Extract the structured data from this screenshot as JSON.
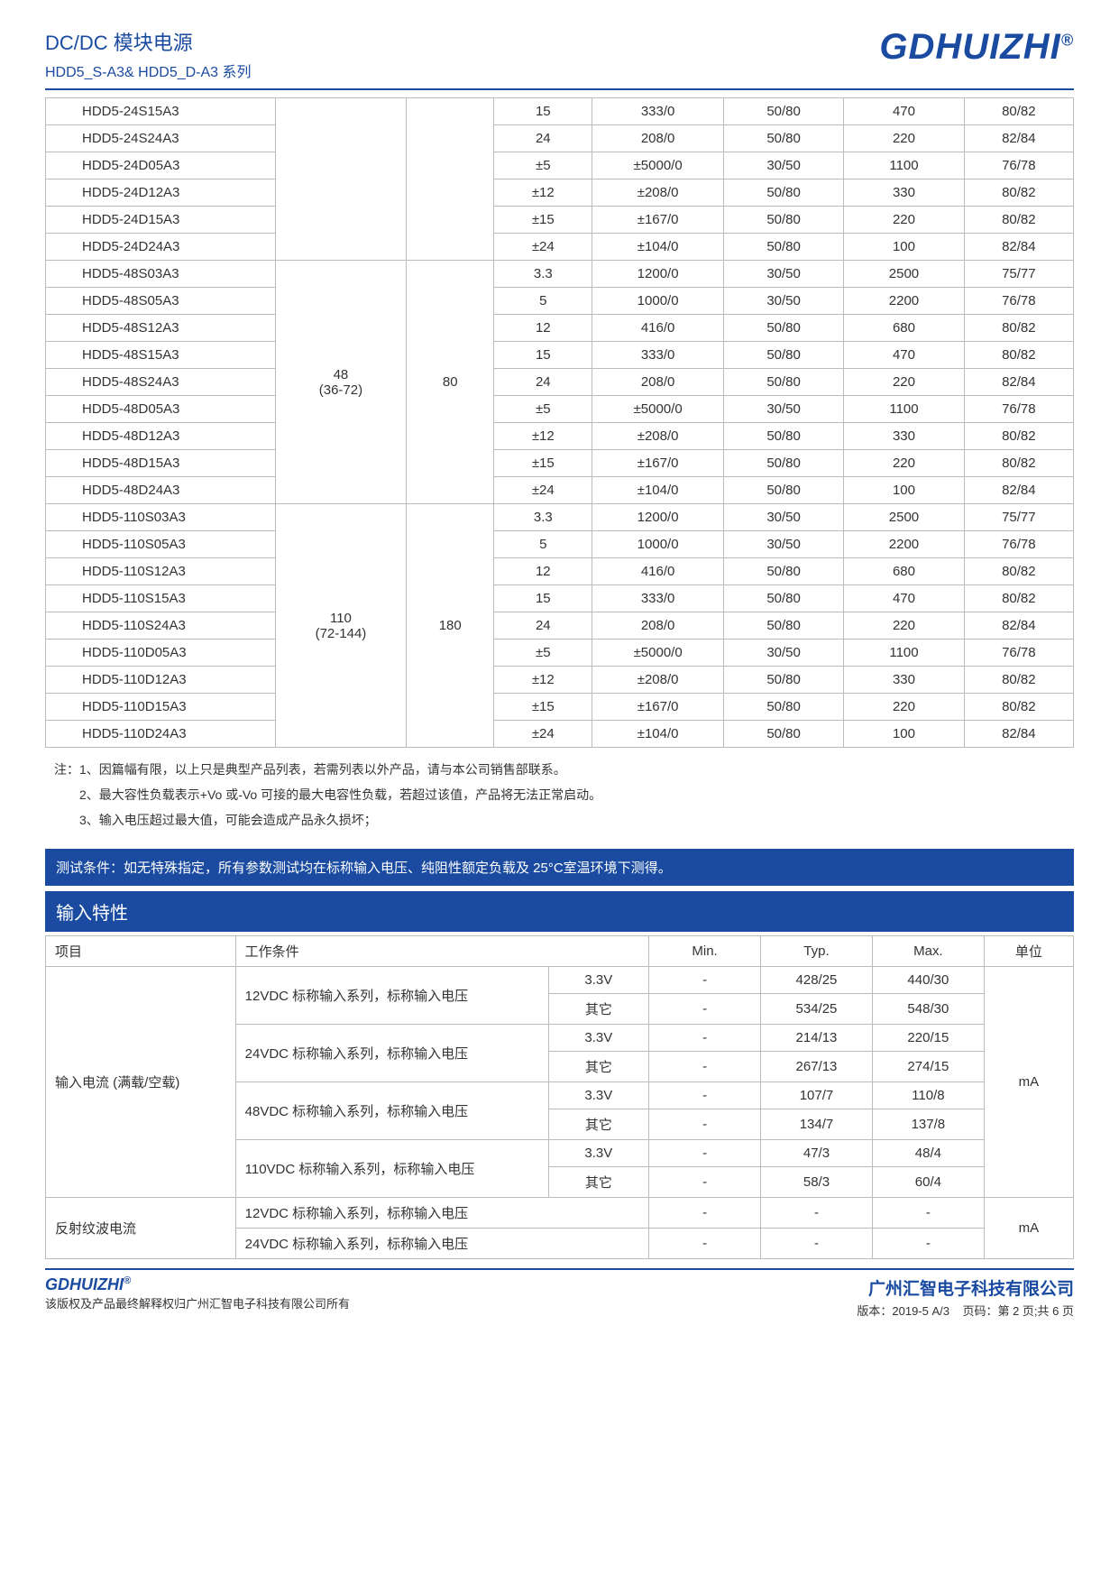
{
  "header": {
    "title": "DC/DC 模块电源",
    "subtitle": "HDD5_S-A3& HDD5_D-A3 系列",
    "brand": "GDHUIZHI",
    "brand_sup": "®"
  },
  "table1": {
    "group0": {
      "span": 6,
      "volt": "",
      "c80": ""
    },
    "rows0": [
      {
        "model": "HDD5-24S15A3",
        "c1": "15",
        "c2": "333/0",
        "c3": "50/80",
        "c4": "470",
        "c5": "80/82"
      },
      {
        "model": "HDD5-24S24A3",
        "c1": "24",
        "c2": "208/0",
        "c3": "50/80",
        "c4": "220",
        "c5": "82/84"
      },
      {
        "model": "HDD5-24D05A3",
        "c1": "±5",
        "c2": "±5000/0",
        "c3": "30/50",
        "c4": "1100",
        "c5": "76/78"
      },
      {
        "model": "HDD5-24D12A3",
        "c1": "±12",
        "c2": "±208/0",
        "c3": "50/80",
        "c4": "330",
        "c5": "80/82"
      },
      {
        "model": "HDD5-24D15A3",
        "c1": "±15",
        "c2": "±167/0",
        "c3": "50/80",
        "c4": "220",
        "c5": "80/82"
      },
      {
        "model": "HDD5-24D24A3",
        "c1": "±24",
        "c2": "±104/0",
        "c3": "50/80",
        "c4": "100",
        "c5": "82/84"
      }
    ],
    "group1": {
      "span": 9,
      "volt_a": "48",
      "volt_b": "(36-72)",
      "c80": "80"
    },
    "rows1": [
      {
        "model": "HDD5-48S03A3",
        "c1": "3.3",
        "c2": "1200/0",
        "c3": "30/50",
        "c4": "2500",
        "c5": "75/77"
      },
      {
        "model": "HDD5-48S05A3",
        "c1": "5",
        "c2": "1000/0",
        "c3": "30/50",
        "c4": "2200",
        "c5": "76/78"
      },
      {
        "model": "HDD5-48S12A3",
        "c1": "12",
        "c2": "416/0",
        "c3": "50/80",
        "c4": "680",
        "c5": "80/82"
      },
      {
        "model": "HDD5-48S15A3",
        "c1": "15",
        "c2": "333/0",
        "c3": "50/80",
        "c4": "470",
        "c5": "80/82"
      },
      {
        "model": "HDD5-48S24A3",
        "c1": "24",
        "c2": "208/0",
        "c3": "50/80",
        "c4": "220",
        "c5": "82/84"
      },
      {
        "model": "HDD5-48D05A3",
        "c1": "±5",
        "c2": "±5000/0",
        "c3": "30/50",
        "c4": "1100",
        "c5": "76/78"
      },
      {
        "model": "HDD5-48D12A3",
        "c1": "±12",
        "c2": "±208/0",
        "c3": "50/80",
        "c4": "330",
        "c5": "80/82"
      },
      {
        "model": "HDD5-48D15A3",
        "c1": "±15",
        "c2": "±167/0",
        "c3": "50/80",
        "c4": "220",
        "c5": "80/82"
      },
      {
        "model": "HDD5-48D24A3",
        "c1": "±24",
        "c2": "±104/0",
        "c3": "50/80",
        "c4": "100",
        "c5": "82/84"
      }
    ],
    "group2": {
      "span": 9,
      "volt_a": "110",
      "volt_b": "(72-144)",
      "c80": "180"
    },
    "rows2": [
      {
        "model": "HDD5-110S03A3",
        "c1": "3.3",
        "c2": "1200/0",
        "c3": "30/50",
        "c4": "2500",
        "c5": "75/77"
      },
      {
        "model": "HDD5-110S05A3",
        "c1": "5",
        "c2": "1000/0",
        "c3": "30/50",
        "c4": "2200",
        "c5": "76/78"
      },
      {
        "model": "HDD5-110S12A3",
        "c1": "12",
        "c2": "416/0",
        "c3": "50/80",
        "c4": "680",
        "c5": "80/82"
      },
      {
        "model": "HDD5-110S15A3",
        "c1": "15",
        "c2": "333/0",
        "c3": "50/80",
        "c4": "470",
        "c5": "80/82"
      },
      {
        "model": "HDD5-110S24A3",
        "c1": "24",
        "c2": "208/0",
        "c3": "50/80",
        "c4": "220",
        "c5": "82/84"
      },
      {
        "model": "HDD5-110D05A3",
        "c1": "±5",
        "c2": "±5000/0",
        "c3": "30/50",
        "c4": "1100",
        "c5": "76/78"
      },
      {
        "model": "HDD5-110D12A3",
        "c1": "±12",
        "c2": "±208/0",
        "c3": "50/80",
        "c4": "330",
        "c5": "80/82"
      },
      {
        "model": "HDD5-110D15A3",
        "c1": "±15",
        "c2": "±167/0",
        "c3": "50/80",
        "c4": "220",
        "c5": "80/82"
      },
      {
        "model": "HDD5-110D24A3",
        "c1": "±24",
        "c2": "±104/0",
        "c3": "50/80",
        "c4": "100",
        "c5": "82/84"
      }
    ]
  },
  "notes": {
    "n1": "注：1、因篇幅有限，以上只是典型产品列表，若需列表以外产品，请与本公司销售部联系。",
    "n2": "2、最大容性负载表示+Vo 或-Vo 可接的最大电容性负载，若超过该值，产品将无法正常启动。",
    "n3": "3、输入电压超过最大值，可能会造成产品永久损坏；"
  },
  "banner": "测试条件：如无特殊指定，所有参数测试均在标称输入电压、纯阻性额定负载及 25°C室温环境下测得。",
  "section_title": "输入特性",
  "spec": {
    "headers": {
      "item": "项目",
      "cond": "工作条件",
      "min": "Min.",
      "typ": "Typ.",
      "max": "Max.",
      "unit": "单位"
    },
    "item1": "输入电流 (满载/空载)",
    "unit_ma": "mA",
    "rows1": [
      {
        "cond": "12VDC 标称输入系列，标称输入电压",
        "sub": "3.3V",
        "min": "-",
        "typ": "428/25",
        "max": "440/30"
      },
      {
        "cond": "",
        "sub": "其它",
        "min": "-",
        "typ": "534/25",
        "max": "548/30"
      },
      {
        "cond": "24VDC 标称输入系列，标称输入电压",
        "sub": "3.3V",
        "min": "-",
        "typ": "214/13",
        "max": "220/15"
      },
      {
        "cond": "",
        "sub": "其它",
        "min": "-",
        "typ": "267/13",
        "max": "274/15"
      },
      {
        "cond": "48VDC 标称输入系列，标称输入电压",
        "sub": "3.3V",
        "min": "-",
        "typ": "107/7",
        "max": "110/8"
      },
      {
        "cond": "",
        "sub": "其它",
        "min": "-",
        "typ": "134/7",
        "max": "137/8"
      },
      {
        "cond": "110VDC 标称输入系列，标称输入电压",
        "sub": "3.3V",
        "min": "-",
        "typ": "47/3",
        "max": "48/4"
      },
      {
        "cond": "",
        "sub": "其它",
        "min": "-",
        "typ": "58/3",
        "max": "60/4"
      }
    ],
    "item2": "反射纹波电流",
    "rows2": [
      {
        "cond": "12VDC 标称输入系列，标称输入电压",
        "min": "-",
        "typ": "-",
        "max": "-"
      },
      {
        "cond": "24VDC 标称输入系列，标称输入电压",
        "min": "-",
        "typ": "-",
        "max": "-"
      }
    ]
  },
  "footer": {
    "brand": "GDHUIZHI",
    "brand_sup": "®",
    "copyright": "该版权及产品最终解释权归广州汇智电子科技有限公司所有",
    "company": "广州汇智电子科技有限公司",
    "version": "版本：2019-5 A/3",
    "page": "页码：第 2 页;共 6 页"
  }
}
